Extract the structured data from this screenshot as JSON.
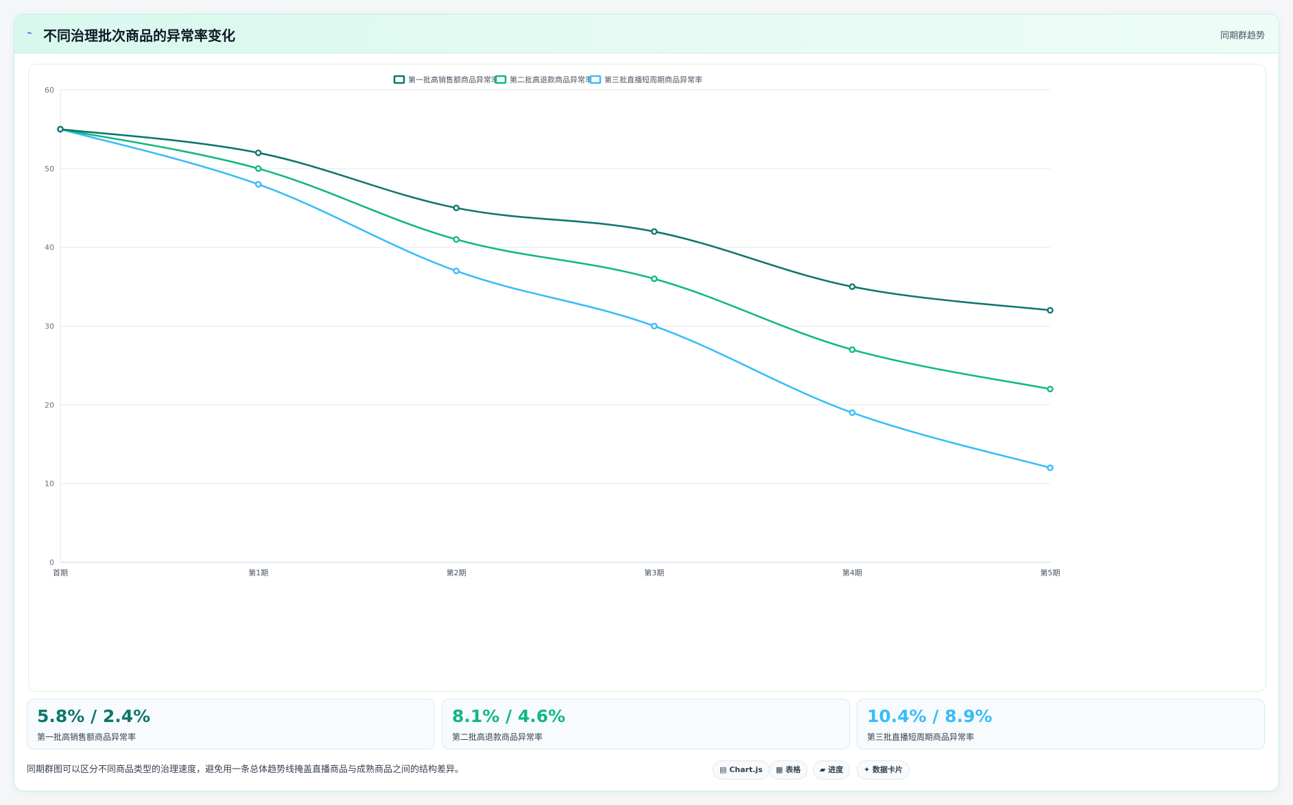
{
  "header": {
    "title_icon": "trend-icon",
    "title": "不同治理批次商品的异常率变化",
    "tag": "同期群趋势"
  },
  "chart_data": {
    "type": "line",
    "title": "",
    "xlabel": "",
    "ylabel": "",
    "categories": [
      "首期",
      "第1期",
      "第2期",
      "第3期",
      "第4期",
      "第5期"
    ],
    "ylim": [
      0,
      60
    ],
    "yticks": [
      0,
      10,
      20,
      30,
      40,
      50,
      60
    ],
    "grid": true,
    "legend_position": "top-center",
    "series": [
      {
        "name": "第一批高销售额商品异常率",
        "color": "#0f766e",
        "values": [
          55,
          52,
          45,
          42,
          35,
          32
        ]
      },
      {
        "name": "第二批高退款商品异常率",
        "color": "#10b981",
        "values": [
          55,
          50,
          41,
          36,
          27,
          22
        ]
      },
      {
        "name": "第三批直播短周期商品异常率",
        "color": "#38bdf8",
        "values": [
          55,
          48,
          37,
          30,
          19,
          12
        ]
      }
    ]
  },
  "stats": [
    {
      "value": "5.8% / 2.4%",
      "label": "第一批高销售额商品异常率",
      "color": "#0f766e"
    },
    {
      "value": "8.1% / 4.6%",
      "label": "第二批高退款商品异常率",
      "color": "#10b981"
    },
    {
      "value": "10.4% / 8.9%",
      "label": "第三批直播短周期商品异常率",
      "color": "#38bdf8"
    }
  ],
  "footer": {
    "note": "同期群图可以区分不同商品类型的治理速度，避免用一条总体趋势线掩盖直播商品与成熟商品之间的结构差异。",
    "chips": [
      {
        "icon": "chart-icon",
        "label": "Chart.js"
      },
      {
        "icon": "table-icon",
        "label": "表格"
      },
      {
        "icon": "progress-icon",
        "label": "进度"
      },
      {
        "icon": "card-icon",
        "label": "数据卡片"
      }
    ]
  }
}
